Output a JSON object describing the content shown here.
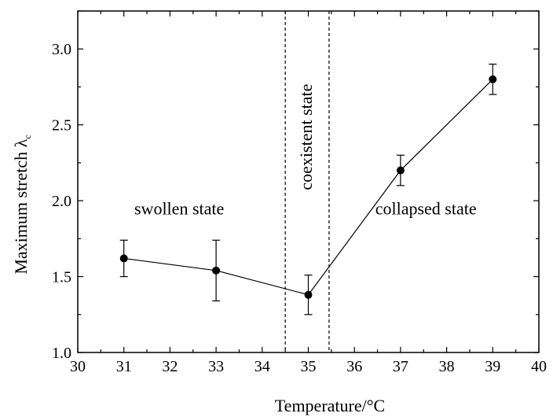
{
  "chart_data": {
    "type": "scatter",
    "title": "",
    "xlabel": "Temperature/°C",
    "ylabel": "Maximum stretch λ",
    "ylabel_subscript": "c",
    "xlim": [
      30,
      40
    ],
    "ylim": [
      1.0,
      3.25
    ],
    "xticks": [
      30,
      31,
      32,
      33,
      34,
      35,
      36,
      37,
      38,
      39,
      40
    ],
    "yticks": [
      1.0,
      1.5,
      2.0,
      2.5,
      3.0
    ],
    "ytick_labels": [
      "1.0",
      "1.5",
      "2.0",
      "2.5",
      "3.0"
    ],
    "grid": false,
    "series": [
      {
        "marker": "circle",
        "connected": true,
        "x": [
          31,
          33,
          35,
          37,
          39
        ],
        "y": [
          1.62,
          1.54,
          1.38,
          2.2,
          2.8
        ],
        "error": [
          0.12,
          0.2,
          0.13,
          0.1,
          0.1
        ]
      }
    ],
    "vertical_lines": [
      {
        "x": 34.5,
        "style": "dashed"
      },
      {
        "x": 35.45,
        "style": "dashed"
      }
    ],
    "annotations": [
      {
        "text": "swollen state",
        "x": 32.2,
        "y": 1.91,
        "rotation": 0
      },
      {
        "text": "coexistent state",
        "x": 35.08,
        "y": 2.42,
        "rotation": -90
      },
      {
        "text": "collapsed state",
        "x": 37.55,
        "y": 1.91,
        "rotation": 0
      }
    ],
    "colors": {
      "line": "#000000",
      "marker": "#000000",
      "background": "#ffffff"
    }
  }
}
